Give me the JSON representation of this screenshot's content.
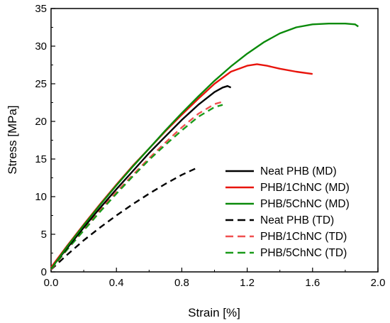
{
  "chart_data": {
    "type": "line",
    "title": "",
    "xlabel": "Strain [%]",
    "ylabel": "Stress [MPa]",
    "xlim": [
      0.0,
      2.0
    ],
    "ylim": [
      0,
      35
    ],
    "xticks": [
      0.0,
      0.4,
      0.8,
      1.2,
      1.6,
      2.0
    ],
    "xtick_labels": [
      "0.0",
      "0.4",
      "0.8",
      "1.2",
      "1.6",
      "2.0"
    ],
    "yticks": [
      0,
      5,
      10,
      15,
      20,
      25,
      30,
      35
    ],
    "ytick_labels": [
      "0",
      "5",
      "10",
      "15",
      "20",
      "25",
      "30",
      "35"
    ],
    "grid": false,
    "legend_position": "bottom-right",
    "series": [
      {
        "name": "Neat PHB (MD)",
        "color": "#000000",
        "dash": "solid",
        "x": [
          0.0,
          0.1,
          0.2,
          0.3,
          0.4,
          0.5,
          0.6,
          0.7,
          0.8,
          0.9,
          1.0,
          1.05,
          1.08,
          1.1
        ],
        "y": [
          0.5,
          3.2,
          5.9,
          8.5,
          11.0,
          13.4,
          15.8,
          18.0,
          20.2,
          22.2,
          23.9,
          24.5,
          24.7,
          24.5
        ]
      },
      {
        "name": "PHB/1ChNC (MD)",
        "color": "#e8140c",
        "dash": "solid",
        "x": [
          0.0,
          0.1,
          0.2,
          0.3,
          0.4,
          0.5,
          0.6,
          0.7,
          0.8,
          0.9,
          1.0,
          1.1,
          1.2,
          1.26,
          1.32,
          1.4,
          1.5,
          1.6
        ],
        "y": [
          0.6,
          3.5,
          6.3,
          9.0,
          11.6,
          14.1,
          16.4,
          18.7,
          20.9,
          23.0,
          25.0,
          26.6,
          27.4,
          27.6,
          27.4,
          27.0,
          26.6,
          26.3
        ]
      },
      {
        "name": "PHB/5ChNC (MD)",
        "color": "#0a8a0a",
        "dash": "solid",
        "x": [
          0.0,
          0.1,
          0.2,
          0.3,
          0.4,
          0.5,
          0.6,
          0.7,
          0.8,
          0.9,
          1.0,
          1.1,
          1.2,
          1.3,
          1.4,
          1.5,
          1.6,
          1.7,
          1.8,
          1.86,
          1.88
        ],
        "y": [
          0.4,
          3.4,
          6.2,
          8.9,
          11.5,
          14.0,
          16.4,
          18.8,
          21.1,
          23.3,
          25.4,
          27.3,
          29.0,
          30.5,
          31.7,
          32.5,
          32.9,
          33.0,
          33.0,
          32.9,
          32.6
        ]
      },
      {
        "name": "Neat PHB (TD)",
        "color": "#000000",
        "dash": "dashed",
        "x": [
          0.0,
          0.1,
          0.2,
          0.3,
          0.4,
          0.5,
          0.6,
          0.7,
          0.8,
          0.9
        ],
        "y": [
          0.3,
          2.3,
          4.2,
          5.9,
          7.5,
          9.0,
          10.4,
          11.7,
          12.9,
          13.9
        ]
      },
      {
        "name": "PHB/1ChNC (TD)",
        "color": "#f05050",
        "dash": "dashed",
        "x": [
          0.0,
          0.1,
          0.2,
          0.3,
          0.4,
          0.5,
          0.6,
          0.7,
          0.8,
          0.9,
          1.0,
          1.05
        ],
        "y": [
          0.3,
          3.0,
          5.6,
          8.2,
          10.6,
          12.9,
          15.1,
          17.2,
          19.2,
          21.0,
          22.3,
          22.6
        ]
      },
      {
        "name": "PHB/5ChNC (TD)",
        "color": "#1a9a1a",
        "dash": "dashed",
        "x": [
          0.0,
          0.1,
          0.2,
          0.3,
          0.4,
          0.5,
          0.6,
          0.7,
          0.8,
          0.9,
          1.0,
          1.05
        ],
        "y": [
          0.4,
          3.0,
          5.5,
          8.0,
          10.4,
          12.7,
          14.9,
          16.9,
          18.8,
          20.6,
          21.9,
          22.2
        ]
      }
    ]
  }
}
